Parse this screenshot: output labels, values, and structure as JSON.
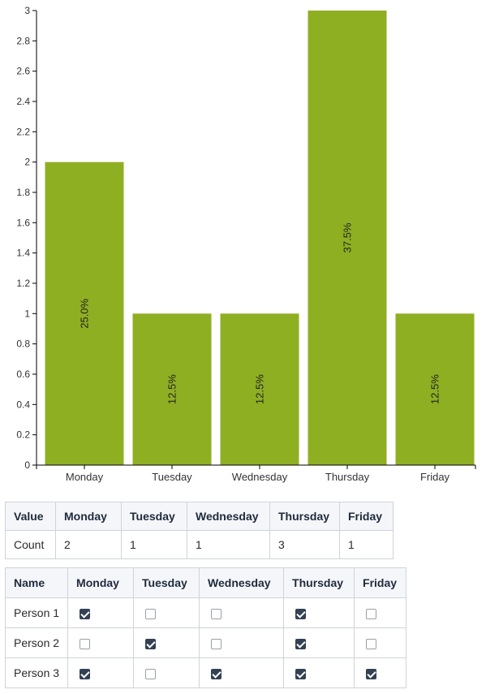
{
  "chart_data": {
    "type": "bar",
    "categories": [
      "Monday",
      "Tuesday",
      "Wednesday",
      "Thursday",
      "Friday"
    ],
    "values": [
      2,
      1,
      1,
      3,
      1
    ],
    "bar_labels": [
      "25.0%",
      "12.5%",
      "12.5%",
      "37.5%",
      "12.5%"
    ],
    "ylim": [
      0,
      3
    ],
    "yticks": [
      "0",
      "0.2",
      "0.4",
      "0.6",
      "0.8",
      "1",
      "1.2",
      "1.4",
      "1.6",
      "1.8",
      "2",
      "2.2",
      "2.4",
      "2.6",
      "2.8",
      "3"
    ],
    "ytick_values": [
      0,
      0.2,
      0.4,
      0.6,
      0.8,
      1,
      1.2,
      1.4,
      1.6,
      1.8,
      2,
      2.2,
      2.4,
      2.6,
      2.8,
      3
    ],
    "bar_color": "#8faf23",
    "grid": false
  },
  "count_table": {
    "headers": [
      "Value",
      "Monday",
      "Tuesday",
      "Wednesday",
      "Thursday",
      "Friday"
    ],
    "rows": [
      [
        "Count",
        "2",
        "1",
        "1",
        "3",
        "1"
      ]
    ]
  },
  "person_table": {
    "headers": [
      "Name",
      "Monday",
      "Tuesday",
      "Wednesday",
      "Thursday",
      "Friday"
    ],
    "rows": [
      {
        "name": "Person 1",
        "days": [
          true,
          false,
          false,
          true,
          false
        ]
      },
      {
        "name": "Person 2",
        "days": [
          false,
          true,
          false,
          true,
          false
        ]
      },
      {
        "name": "Person 3",
        "days": [
          true,
          false,
          true,
          true,
          true
        ]
      }
    ]
  },
  "colors": {
    "checkbox_checked": "#334155",
    "header_bg": "#f4f6f9",
    "border": "#cfd3da"
  }
}
